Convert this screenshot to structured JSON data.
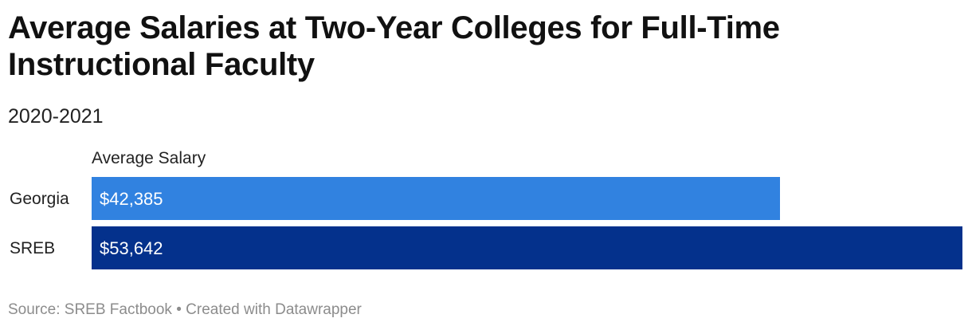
{
  "title": "Average Salaries at Two-Year Colleges for Full-Time Instructional Faculty",
  "subtitle": "2020-2021",
  "footer": {
    "source_label": "Source: ",
    "source": "SREB Factbook",
    "separator": " • ",
    "credit": "Created with Datawrapper"
  },
  "chart_data": {
    "type": "bar",
    "orientation": "horizontal",
    "column_header": "Average Salary",
    "categories": [
      "Georgia",
      "SREB"
    ],
    "values": [
      42385,
      53642
    ],
    "value_labels": [
      "$42,385",
      "$53,642"
    ],
    "colors": [
      "#3182e0",
      "#04318c"
    ],
    "label_color": "#ffffff",
    "xlim": [
      0,
      53642
    ],
    "grid": false,
    "legend": "none"
  }
}
